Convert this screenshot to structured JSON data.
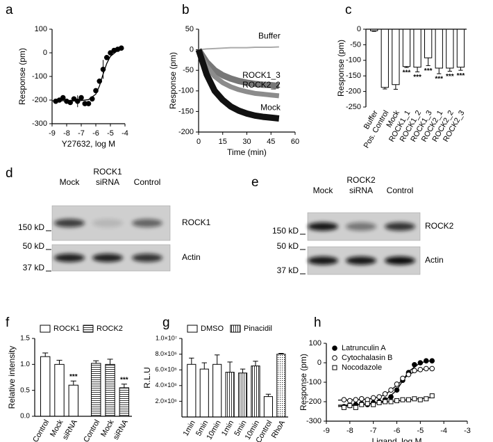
{
  "chart_data": [
    {
      "panel": "a",
      "type": "scatter",
      "x_label": "Y27632, log M",
      "y_label": "Response (pm)",
      "x": [
        -8.75,
        -8.5,
        -8.25,
        -8,
        -7.75,
        -7.5,
        -7.25,
        -7,
        -6.75,
        -6.5,
        -6.25,
        -6,
        -5.75,
        -5.5,
        -5.25,
        -5,
        -4.75,
        -4.5,
        -4.25
      ],
      "values": [
        -205,
        -200,
        -190,
        -205,
        -210,
        -195,
        -205,
        -190,
        -215,
        -215,
        -195,
        -160,
        -120,
        -70,
        -20,
        0,
        10,
        15,
        20
      ],
      "errors": [
        null,
        null,
        null,
        null,
        null,
        null,
        25,
        null,
        null,
        null,
        null,
        null,
        null,
        40,
        null,
        null,
        null,
        null,
        null
      ],
      "color": "#000000",
      "fit": {
        "x": [
          -9,
          -8,
          -7,
          -6.5,
          -6,
          -5.75,
          -5.5,
          -5.25,
          -5,
          -4.5,
          -4.25
        ],
        "values": [
          -203,
          -203,
          -202,
          -198,
          -175,
          -140,
          -90,
          -45,
          -15,
          10,
          15
        ]
      },
      "xlim": [
        -9,
        -4
      ],
      "xticks": [
        -9,
        -8,
        -7,
        -6,
        -5,
        -4
      ],
      "ylim": [
        -300,
        100
      ],
      "yticks": [
        -300,
        -200,
        -100,
        0,
        100
      ]
    },
    {
      "panel": "b",
      "type": "line",
      "x_label": "Time (min)",
      "y_label": "Response (pm)",
      "x": [
        0,
        5,
        10,
        15,
        20,
        25,
        30,
        35,
        40,
        45,
        50
      ],
      "series": [
        {
          "name": "Buffer",
          "color": "#aaaaaa",
          "width": 2,
          "values": [
            0,
            2,
            3,
            4,
            5,
            5,
            5,
            6,
            6,
            6,
            7
          ]
        },
        {
          "name": "ROCK1_3",
          "color": "#777777",
          "width": 9,
          "values": [
            0,
            -30,
            -50,
            -62,
            -70,
            -76,
            -80,
            -83,
            -85,
            -86,
            -88
          ]
        },
        {
          "name": "ROCK2_2",
          "color": "#8c8c8c",
          "width": 7,
          "values": [
            0,
            -40,
            -65,
            -80,
            -90,
            -97,
            -102,
            -106,
            -108,
            -110,
            -112
          ]
        },
        {
          "name": "Mock",
          "color": "#111111",
          "width": 9,
          "values": [
            0,
            -60,
            -100,
            -122,
            -138,
            -148,
            -155,
            -160,
            -163,
            -165,
            -167
          ]
        }
      ],
      "xlim": [
        0,
        60
      ],
      "xticks": [
        0,
        15,
        30,
        45,
        60
      ],
      "ylim": [
        -200,
        50
      ],
      "yticks": [
        -200,
        -150,
        -100,
        -50,
        0,
        50
      ]
    },
    {
      "panel": "c",
      "type": "bar",
      "y_label": "Response (pm)",
      "categories": [
        "Buffer",
        "Pos. Control",
        "Mock",
        "ROCK1_1",
        "ROCK1_2",
        "ROCK1_3",
        "ROCK2_1",
        "ROCK2_2",
        "ROCK2_3"
      ],
      "values": [
        -5,
        -187,
        -178,
        -120,
        -122,
        -92,
        -125,
        -125,
        -122
      ],
      "errors": [
        2,
        5,
        15,
        3,
        15,
        25,
        18,
        10,
        10
      ],
      "significance": [
        null,
        null,
        null,
        "***",
        "***",
        "***",
        "***",
        "***",
        "***"
      ],
      "color": "#ffffff",
      "ylim": [
        -250,
        0
      ],
      "yticks": [
        -250,
        -200,
        -150,
        -100,
        -50,
        0
      ]
    },
    {
      "panel": "f",
      "type": "bar",
      "y_label": "Relative intensity",
      "categories": [
        "Control",
        "Mock",
        "siRNA"
      ],
      "series": [
        {
          "name": "ROCK1",
          "fill": "white",
          "values": [
            1.15,
            1.0,
            0.6
          ],
          "errors": [
            0.07,
            0.08,
            0.08
          ],
          "significance": [
            null,
            null,
            "***"
          ]
        },
        {
          "name": "ROCK2",
          "fill": "stripes",
          "values": [
            1.02,
            1.0,
            0.55
          ],
          "errors": [
            0.05,
            0.1,
            0.07
          ],
          "significance": [
            null,
            null,
            "***"
          ]
        }
      ],
      "ylim": [
        0,
        1.5
      ],
      "yticks": [
        {
          "value": 0,
          "label": "0.0"
        },
        {
          "value": 0.5,
          "label": "0.5"
        },
        {
          "value": 1,
          "label": "1.0"
        },
        {
          "value": 1.5,
          "label": "1.5"
        }
      ]
    },
    {
      "panel": "g",
      "type": "bar",
      "y_label": "R.L.U",
      "categories": [
        "1min",
        "5min",
        "10min",
        "1min",
        "5min",
        "10min",
        "Control",
        "RhoA"
      ],
      "values": [
        6700000,
        6100000,
        6700000,
        5700000,
        5600000,
        6500000,
        2600000,
        8000000
      ],
      "errors": [
        800000,
        800000,
        1200000,
        1300000,
        500000,
        600000,
        300000,
        100000
      ],
      "fills": [
        "white",
        "white",
        "white",
        "hatch",
        "hatch",
        "hatch",
        "white",
        "dots"
      ],
      "legend": [
        {
          "name": "DMSO",
          "fill": "white"
        },
        {
          "name": "Pinacidil",
          "fill": "hatch"
        }
      ],
      "ylim": [
        0,
        10000000
      ],
      "yticks": [
        {
          "value": 2000000,
          "label": "2.0×10⁶"
        },
        {
          "value": 4000000,
          "label": "4.0×10⁶"
        },
        {
          "value": 6000000,
          "label": "6.0×10⁶"
        },
        {
          "value": 8000000,
          "label": "8.0×10⁶"
        },
        {
          "value": 10000000,
          "label": "1.0×10⁷"
        }
      ]
    },
    {
      "panel": "h",
      "type": "scatter",
      "x_label": "Ligand, log M",
      "y_label": "Response (pm)",
      "x": [
        -8.25,
        -8,
        -7.75,
        -7.5,
        -7.25,
        -7,
        -6.75,
        -6.5,
        -6.25,
        -6,
        -5.75,
        -5.5,
        -5.25,
        -5,
        -4.75,
        -4.5
      ],
      "fit_x": [
        -8.5,
        -8,
        -7.5,
        -7,
        -6.5,
        -6,
        -5.5,
        -5,
        -4.5
      ],
      "series": [
        {
          "name": "Latrunculin A",
          "marker": "filled-circle",
          "values": [
            -225,
            -220,
            -215,
            -210,
            -215,
            -205,
            -200,
            -190,
            -175,
            -140,
            -90,
            -50,
            -10,
            0,
            10,
            10
          ],
          "fit": [
            -218,
            -217,
            -215,
            -210,
            -195,
            -140,
            -45,
            0,
            12
          ]
        },
        {
          "name": "Cytochalasin B",
          "marker": "open-circle",
          "values": [
            -190,
            -195,
            -190,
            -185,
            -190,
            -180,
            -175,
            -160,
            -140,
            -110,
            -80,
            -60,
            -40,
            -35,
            -30,
            -30
          ],
          "fit": [
            -192,
            -191,
            -189,
            -183,
            -165,
            -115,
            -60,
            -35,
            -28
          ]
        },
        {
          "name": "Nocodazole",
          "marker": "open-square",
          "values": [
            -230,
            -220,
            -230,
            -215,
            -210,
            -215,
            -205,
            -200,
            -200,
            -195,
            -190,
            -190,
            -185,
            -190,
            -185,
            -170
          ],
          "fit": [
            -225,
            -220,
            -214,
            -208,
            -202,
            -196,
            -190,
            -184,
            -178
          ]
        }
      ],
      "xlim": [
        -9,
        -3
      ],
      "xticks": [
        -9,
        -8,
        -7,
        -6,
        -5,
        -4,
        -3
      ],
      "ylim": [
        -300,
        100
      ],
      "yticks": [
        -300,
        -200,
        -100,
        0,
        100
      ]
    }
  ],
  "blots": [
    {
      "panel": "d",
      "lanes": [
        [
          "Mock"
        ],
        [
          "ROCK1",
          "siRNA"
        ],
        [
          "Control"
        ]
      ],
      "markers": [
        "150 kD",
        "50 kD",
        "37 kD"
      ],
      "proteins": [
        "ROCK1",
        "Actin"
      ]
    },
    {
      "panel": "e",
      "lanes": [
        [
          "Mock"
        ],
        [
          "ROCK2",
          "siRNA"
        ],
        [
          "Control"
        ]
      ],
      "markers": [
        "150 kD",
        "50 kD",
        "37 kD"
      ],
      "proteins": [
        "ROCK2",
        "Actin"
      ]
    }
  ]
}
